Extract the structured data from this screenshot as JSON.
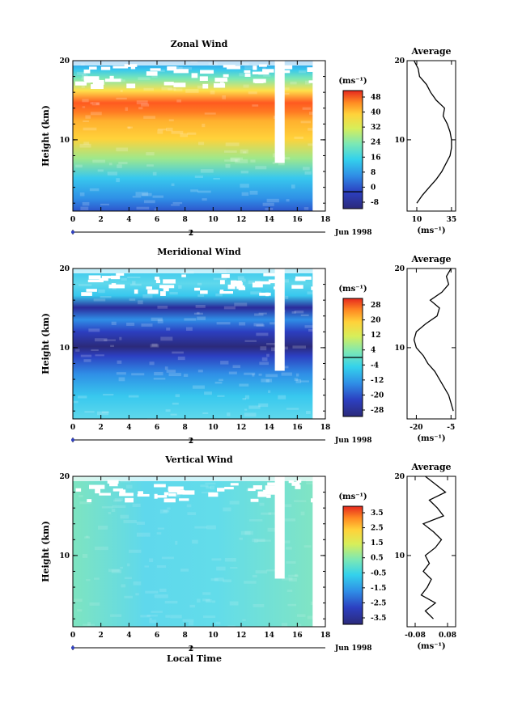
{
  "figure": {
    "local_time_label": "Local Time",
    "date_label": "Jun 1998",
    "day_label": "2",
    "average_title": "Average",
    "unit_label": "(ms⁻¹)",
    "height_label": "Height (km)"
  },
  "chart_data": [
    {
      "type": "heatmap",
      "title": "Zonal Wind",
      "xlabel": "",
      "ylabel": "Height (km)",
      "x_ticks": [
        "0",
        "2",
        "4",
        "6",
        "8",
        "10",
        "12",
        "14",
        "16",
        "18"
      ],
      "y_ticks": [
        "10",
        "20"
      ],
      "xlim": [
        0,
        18
      ],
      "ylim": [
        1,
        20
      ],
      "colorbar": {
        "label": "(ms⁻¹)",
        "ticks": [
          "48",
          "40",
          "32",
          "24",
          "16",
          "8",
          "0",
          "-8"
        ],
        "range": [
          -8,
          48
        ],
        "zero_line": 0
      },
      "data_gap_x": [
        14.4,
        15.1
      ],
      "data_end_x": 17.1,
      "profile": {
        "title": "Average",
        "x_ticks": [
          "10",
          "35"
        ],
        "xlim": [
          3,
          38
        ],
        "xlabel": "(ms⁻¹)",
        "heights": [
          2,
          3,
          4,
          5,
          6,
          7,
          8,
          9,
          10,
          11,
          12,
          13,
          14,
          15,
          16,
          17,
          18,
          19,
          20
        ],
        "values": [
          10,
          14,
          19,
          24,
          28,
          31,
          34,
          35,
          35,
          34,
          32,
          29,
          30,
          24,
          20,
          17,
          12,
          11,
          8
        ]
      }
    },
    {
      "type": "heatmap",
      "title": "Meridional Wind",
      "xlabel": "",
      "ylabel": "Height (km)",
      "x_ticks": [
        "0",
        "2",
        "4",
        "6",
        "8",
        "10",
        "12",
        "14",
        "16",
        "18"
      ],
      "y_ticks": [
        "10",
        "20"
      ],
      "xlim": [
        0,
        18
      ],
      "ylim": [
        1,
        20
      ],
      "colorbar": {
        "label": "(ms⁻¹)",
        "ticks": [
          "28",
          "20",
          "12",
          "4",
          "-4",
          "-12",
          "-20",
          "-28"
        ],
        "range": [
          -28,
          28
        ],
        "zero_line": 0
      },
      "data_gap_x": [
        14.4,
        15.1
      ],
      "data_end_x": 17.1,
      "profile": {
        "title": "Average",
        "x_ticks": [
          "-20",
          "-5"
        ],
        "xlim": [
          -24,
          -3
        ],
        "xlabel": "(ms⁻¹)",
        "heights": [
          2,
          3,
          4,
          5,
          6,
          7,
          8,
          9,
          10,
          11,
          12,
          13,
          14,
          15,
          16,
          17,
          18,
          19,
          20
        ],
        "values": [
          -4,
          -5,
          -6,
          -8,
          -10,
          -12,
          -15,
          -17,
          -20,
          -21,
          -20,
          -16,
          -11,
          -10,
          -14,
          -9,
          -6,
          -7,
          -5
        ]
      }
    },
    {
      "type": "heatmap",
      "title": "Vertical Wind",
      "xlabel": "Local Time",
      "ylabel": "Height (km)",
      "x_ticks": [
        "0",
        "2",
        "4",
        "6",
        "8",
        "10",
        "12",
        "14",
        "16",
        "18"
      ],
      "y_ticks": [
        "10",
        "20"
      ],
      "xlim": [
        0,
        18
      ],
      "ylim": [
        1,
        20
      ],
      "colorbar": {
        "label": "(ms⁻¹)",
        "ticks": [
          "3.5",
          "2.5",
          "1.5",
          "0.5",
          "-0.5",
          "-1.5",
          "-2.5",
          "-3.5"
        ],
        "range": [
          -4,
          4
        ]
      },
      "data_gap_x": [
        14.4,
        15.1
      ],
      "data_end_x": 17.1,
      "profile": {
        "title": "Average",
        "x_ticks": [
          "-0.08",
          "0.08"
        ],
        "xlim": [
          -0.12,
          0.12
        ],
        "xlabel": "(ms⁻¹)",
        "heights": [
          2,
          3,
          4,
          5,
          6,
          7,
          8,
          9,
          10,
          11,
          12,
          13,
          14,
          15,
          16,
          17,
          18,
          19,
          20
        ],
        "values": [
          0.01,
          -0.03,
          0.02,
          -0.05,
          -0.02,
          0.0,
          -0.04,
          -0.01,
          -0.03,
          0.02,
          0.05,
          0.01,
          -0.04,
          0.06,
          0.03,
          -0.01,
          0.07,
          0.02,
          -0.03
        ]
      }
    }
  ]
}
